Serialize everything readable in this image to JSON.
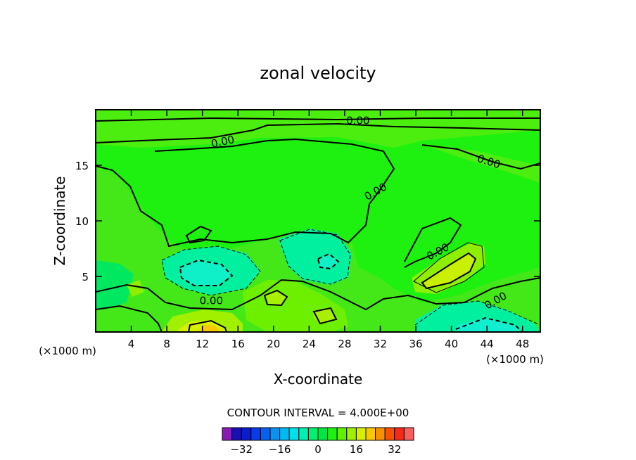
{
  "chart_data": {
    "type": "contour",
    "title": "zonal velocity",
    "xlabel": "X-coordinate",
    "ylabel": "Z-coordinate",
    "x_unit_left": "(×1000 m)",
    "x_unit_right": "(×1000 m)",
    "xlim": [
      0,
      50
    ],
    "ylim": [
      0,
      20
    ],
    "x_ticks": [
      4,
      8,
      12,
      16,
      20,
      24,
      28,
      32,
      36,
      40,
      44,
      48
    ],
    "y_ticks": [
      5,
      10,
      15
    ],
    "contour_interval_text": "CONTOUR INTERVAL = 4.000E+00",
    "contour_label": "0.00",
    "contour_labels": [
      {
        "text": "0.00",
        "x": 29.5,
        "y": 19.0,
        "angle": 0
      },
      {
        "text": "0.00",
        "x": 14.3,
        "y": 17.1,
        "angle": -12
      },
      {
        "text": "0.00",
        "x": 44.2,
        "y": 15.3,
        "angle": 18
      },
      {
        "text": "0.00",
        "x": 31.5,
        "y": 12.6,
        "angle": -30
      },
      {
        "text": "0.00",
        "x": 38.5,
        "y": 7.2,
        "angle": -28
      },
      {
        "text": "0.00",
        "x": 13.0,
        "y": 2.8,
        "angle": 0
      },
      {
        "text": "0.00",
        "x": 45.0,
        "y": 2.8,
        "angle": -30
      }
    ],
    "features": [
      {
        "name": "negative-core-left",
        "x": 11.8,
        "y": 5.4,
        "value": -8
      },
      {
        "name": "negative-core-mid",
        "x": 25.0,
        "y": 6.3,
        "value": -8
      },
      {
        "name": "negative-core-bottom-right",
        "x": 43.0,
        "y": 0.7,
        "value": -8
      },
      {
        "name": "positive-core-right",
        "x": 38.5,
        "y": 5.3,
        "value": 12
      },
      {
        "name": "positive-core-bottom",
        "x": 12.5,
        "y": 0.4,
        "value": 16
      },
      {
        "name": "positive-core-center",
        "x": 20.5,
        "y": 3.0,
        "value": 8
      }
    ],
    "colorbar": {
      "ticks": [
        -32,
        -16,
        0,
        16,
        32
      ],
      "tick_labels": [
        "−32",
        "−16",
        "0",
        "16",
        "32"
      ],
      "levels": [
        -40,
        -36,
        -32,
        -28,
        -24,
        -20,
        -16,
        -12,
        -8,
        -4,
        0,
        4,
        8,
        12,
        16,
        20,
        24,
        28,
        32,
        36,
        40
      ],
      "colors": [
        "#8a1ab8",
        "#1a0fb0",
        "#0a1ccc",
        "#0a3aea",
        "#0860f0",
        "#0a90f0",
        "#00b8f2",
        "#00e0e8",
        "#00f0b0",
        "#00f070",
        "#00e840",
        "#20f010",
        "#60f000",
        "#a0f000",
        "#d8f000",
        "#f8c800",
        "#f89000",
        "#f85000",
        "#f82818",
        "#f86060"
      ]
    }
  }
}
